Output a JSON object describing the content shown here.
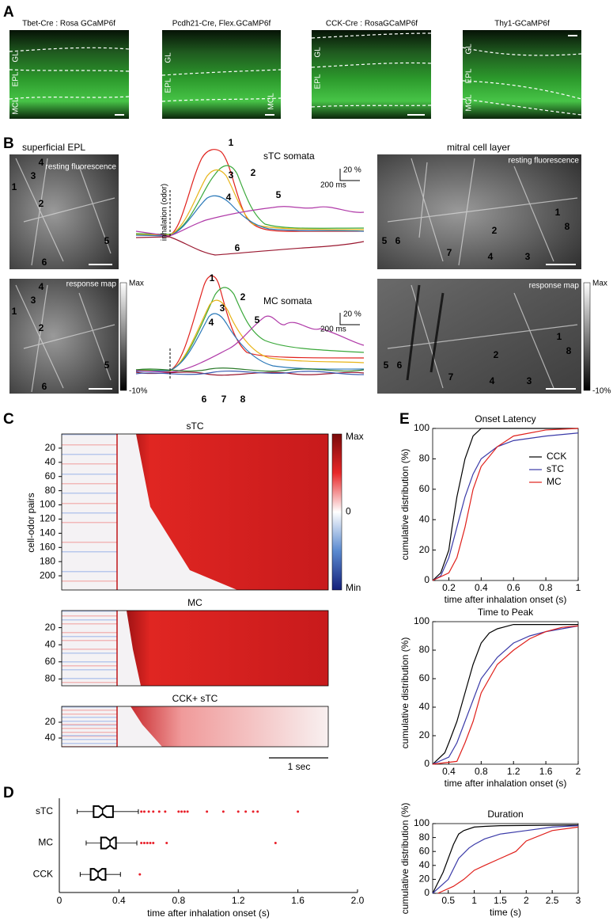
{
  "panel_labels": {
    "a": "A",
    "b": "B",
    "c": "C",
    "d": "D",
    "e": "E"
  },
  "panel_a": [
    {
      "title": "Tbet-Cre : Rosa GCaMP6f",
      "layers": [
        "GL",
        "EPL",
        "MCL"
      ]
    },
    {
      "title": "Pcdh21-Cre, Flex.GCaMP6f",
      "layers": [
        "GL",
        "EPL",
        "MCL"
      ]
    },
    {
      "title": "CCK-Cre : RosaGCaMP6f",
      "layers": [
        "GL",
        "EPL"
      ]
    },
    {
      "title": "Thy1-GCaMP6f",
      "layers": [
        "GL",
        "EPL",
        "MCL"
      ]
    }
  ],
  "panel_b": {
    "left_title": "superficial EPL",
    "right_title": "mitral cell layer",
    "resting": "resting fluorescence",
    "response_map": "response map",
    "colorbar_max": "Max",
    "colorbar_min": "-10%",
    "trace_titles": [
      "sTC somata",
      "MC somata"
    ],
    "stimulus": "inhalation (odor)",
    "scale_y": "20 %",
    "scale_x": "200 ms",
    "stc_cells": [
      "1",
      "2",
      "3",
      "4",
      "5",
      "6"
    ],
    "mc_cells": [
      "1",
      "2",
      "3",
      "4",
      "5",
      "6",
      "7",
      "8"
    ]
  },
  "chart_data": [
    {
      "type": "heatmap",
      "title": "sTC",
      "ylabel": "cell-odor pairs",
      "ylim": [
        0,
        220
      ],
      "yticks": [
        20,
        40,
        60,
        80,
        100,
        120,
        140,
        160,
        180,
        200
      ],
      "colorbar_labels": [
        "Max",
        "0",
        "Min"
      ]
    },
    {
      "type": "heatmap",
      "title": "MC",
      "ylim": [
        0,
        88
      ],
      "yticks": [
        20,
        40,
        60,
        80
      ]
    },
    {
      "type": "heatmap",
      "title": "CCK+ sTC",
      "ylim": [
        0,
        51
      ],
      "yticks": [
        20,
        40
      ],
      "scale_bar": "1 sec"
    },
    {
      "type": "boxplot",
      "orientation": "horizontal",
      "categories": [
        "sTC",
        "MC",
        "CCK"
      ],
      "boxes": [
        {
          "whislo": 0.12,
          "q1": 0.23,
          "med": 0.29,
          "q3": 0.36,
          "whishi": 0.53,
          "fliers": [
            0.55,
            0.57,
            0.6,
            0.63,
            0.67,
            0.71,
            0.8,
            0.82,
            0.84,
            0.86,
            0.99,
            1.1,
            1.2,
            1.25,
            1.3,
            1.33,
            1.6
          ]
        },
        {
          "whislo": 0.18,
          "q1": 0.28,
          "med": 0.34,
          "q3": 0.38,
          "whishi": 0.52,
          "fliers": [
            0.55,
            0.57,
            0.59,
            0.61,
            0.63,
            0.72,
            1.45
          ]
        },
        {
          "whislo": 0.14,
          "q1": 0.21,
          "med": 0.26,
          "q3": 0.31,
          "whishi": 0.41,
          "fliers": [
            0.54
          ]
        }
      ],
      "xlim": [
        0,
        2
      ],
      "xticks": [
        0,
        0.4,
        0.8,
        1.2,
        1.6,
        {
          "value": 2,
          "label": "2.0"
        }
      ],
      "xlabel": "time after inhalation onset (s)",
      "box_color": "#000000",
      "flier_color": "#e8202a"
    },
    {
      "type": "line",
      "title": "Onset Latency",
      "xlabel": "time after inhalation onset (s)",
      "ylabel": "cumulative distribution (%)",
      "xlim": [
        0.1,
        1
      ],
      "ylim": [
        0,
        100
      ],
      "xticks": [
        0.2,
        0.4,
        0.6,
        0.8,
        1
      ],
      "yticks": [
        0,
        20,
        40,
        60,
        80,
        100
      ],
      "legend": "center right",
      "series": [
        {
          "name": "CCK",
          "color": "#000000",
          "x": [
            0.1,
            0.15,
            0.2,
            0.22,
            0.25,
            0.28,
            0.3,
            0.35,
            0.4,
            0.55,
            1
          ],
          "values": [
            0,
            5,
            20,
            35,
            55,
            70,
            80,
            95,
            100,
            100,
            100
          ]
        },
        {
          "name": "sTC",
          "color": "#3a3aa8",
          "x": [
            0.1,
            0.15,
            0.2,
            0.25,
            0.3,
            0.35,
            0.4,
            0.5,
            0.6,
            0.8,
            1
          ],
          "values": [
            0,
            3,
            15,
            35,
            55,
            70,
            80,
            88,
            92,
            95,
            97
          ]
        },
        {
          "name": "MC",
          "color": "#e0201b",
          "x": [
            0.1,
            0.2,
            0.25,
            0.3,
            0.35,
            0.4,
            0.5,
            0.6,
            0.8,
            1
          ],
          "values": [
            0,
            5,
            15,
            35,
            60,
            75,
            88,
            95,
            99,
            100
          ]
        }
      ]
    },
    {
      "type": "line",
      "title": "Time to Peak",
      "xlabel": "time after inhalation onset (s)",
      "ylabel": "cumulative distribution (%)",
      "xlim": [
        0.2,
        2
      ],
      "ylim": [
        0,
        100
      ],
      "xticks": [
        0.4,
        0.8,
        1.2,
        1.6,
        2
      ],
      "yticks": [
        0,
        20,
        40,
        60,
        80,
        100
      ],
      "series": [
        {
          "color": "#000000",
          "x": [
            0.2,
            0.35,
            0.4,
            0.5,
            0.6,
            0.7,
            0.8,
            0.9,
            1,
            1.2,
            2
          ],
          "values": [
            0,
            8,
            15,
            30,
            50,
            70,
            85,
            92,
            95,
            98,
            98
          ]
        },
        {
          "color": "#3a3aa8",
          "x": [
            0.2,
            0.4,
            0.5,
            0.6,
            0.7,
            0.8,
            1,
            1.2,
            1.4,
            1.6,
            2
          ],
          "values": [
            0,
            5,
            15,
            30,
            45,
            60,
            75,
            85,
            90,
            93,
            97
          ]
        },
        {
          "color": "#e0201b",
          "x": [
            0.2,
            0.5,
            0.6,
            0.7,
            0.8,
            1,
            1.2,
            1.4,
            1.6,
            1.8,
            2
          ],
          "values": [
            0,
            2,
            15,
            30,
            50,
            70,
            80,
            88,
            93,
            96,
            97
          ]
        }
      ]
    },
    {
      "type": "line",
      "title": "Duration",
      "xlabel": "time (s)",
      "ylabel": "cumulative distribution (%)",
      "xlim": [
        0.2,
        3
      ],
      "ylim": [
        0,
        100
      ],
      "xticks": [
        0.5,
        1,
        1.5,
        2,
        2.5,
        3
      ],
      "yticks": [
        0,
        20,
        40,
        60,
        80,
        100
      ],
      "series": [
        {
          "color": "#000000",
          "x": [
            0.2,
            0.4,
            0.5,
            0.6,
            0.7,
            0.8,
            1,
            1.2,
            1.5,
            3
          ],
          "values": [
            0,
            30,
            50,
            70,
            85,
            90,
            95,
            96,
            97,
            98
          ]
        },
        {
          "color": "#3a3aa8",
          "x": [
            0.2,
            0.5,
            0.7,
            0.9,
            1,
            1.2,
            1.5,
            2,
            2.5,
            3
          ],
          "values": [
            0,
            20,
            50,
            65,
            70,
            78,
            85,
            90,
            95,
            97
          ]
        },
        {
          "color": "#e0201b",
          "x": [
            0.3,
            0.6,
            0.8,
            1,
            1.2,
            1.5,
            1.8,
            2,
            2.5,
            3
          ],
          "values": [
            0,
            10,
            20,
            33,
            40,
            50,
            60,
            75,
            90,
            95
          ]
        }
      ]
    }
  ]
}
